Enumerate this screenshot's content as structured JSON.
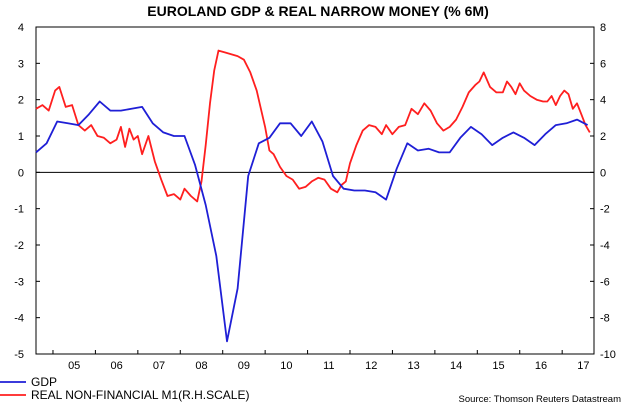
{
  "chart_data": {
    "type": "line",
    "title": "EUROLAND GDP & REAL NARROW MONEY (% 6M)",
    "source": "Source: Thomson Reuters Datastream",
    "colors": {
      "gdp": "#1f1fd6",
      "m1": "#ff1f1f",
      "axis": "#000000",
      "zero_line": "#000000"
    },
    "x_axis": {
      "labels": [
        "05",
        "06",
        "07",
        "08",
        "09",
        "10",
        "11",
        "12",
        "13",
        "14",
        "15",
        "16",
        "17"
      ],
      "range": [
        2004.6,
        2017.75
      ]
    },
    "y_left": {
      "label": "GDP",
      "range": [
        -5,
        4
      ],
      "ticks": [
        "4",
        "3",
        "2",
        "1",
        "0",
        "-1",
        "-2",
        "-3",
        "-4",
        "-5"
      ]
    },
    "y_right": {
      "label": "REAL NON-FINANCIAL M1 (R.H.SCALE)",
      "range": [
        -10,
        8
      ],
      "ticks": [
        "8",
        "6",
        "4",
        "2",
        "0",
        "-2",
        "-4",
        "-6",
        "-8",
        "-10"
      ]
    },
    "legend": [
      "GDP",
      "REAL NON-FINANCIAL M1(R.H.SCALE)"
    ],
    "series": [
      {
        "name": "GDP",
        "axis": "left",
        "points": [
          [
            2004.6,
            0.55
          ],
          [
            2004.85,
            0.8
          ],
          [
            2005.1,
            1.4
          ],
          [
            2005.35,
            1.35
          ],
          [
            2005.6,
            1.3
          ],
          [
            2005.85,
            1.6
          ],
          [
            2006.1,
            1.95
          ],
          [
            2006.35,
            1.7
          ],
          [
            2006.6,
            1.7
          ],
          [
            2006.85,
            1.75
          ],
          [
            2007.1,
            1.8
          ],
          [
            2007.35,
            1.35
          ],
          [
            2007.6,
            1.1
          ],
          [
            2007.85,
            1.0
          ],
          [
            2008.1,
            1.0
          ],
          [
            2008.35,
            0.2
          ],
          [
            2008.6,
            -0.9
          ],
          [
            2008.85,
            -2.3
          ],
          [
            2009.1,
            -4.65
          ],
          [
            2009.35,
            -3.2
          ],
          [
            2009.6,
            -0.1
          ],
          [
            2009.85,
            0.8
          ],
          [
            2010.1,
            0.95
          ],
          [
            2010.35,
            1.35
          ],
          [
            2010.6,
            1.35
          ],
          [
            2010.85,
            1.0
          ],
          [
            2011.1,
            1.4
          ],
          [
            2011.35,
            0.85
          ],
          [
            2011.6,
            -0.1
          ],
          [
            2011.85,
            -0.45
          ],
          [
            2012.1,
            -0.5
          ],
          [
            2012.35,
            -0.5
          ],
          [
            2012.6,
            -0.55
          ],
          [
            2012.85,
            -0.75
          ],
          [
            2013.1,
            0.1
          ],
          [
            2013.35,
            0.8
          ],
          [
            2013.6,
            0.6
          ],
          [
            2013.85,
            0.65
          ],
          [
            2014.1,
            0.55
          ],
          [
            2014.35,
            0.55
          ],
          [
            2014.6,
            0.95
          ],
          [
            2014.85,
            1.25
          ],
          [
            2015.1,
            1.05
          ],
          [
            2015.35,
            0.75
          ],
          [
            2015.6,
            0.95
          ],
          [
            2015.85,
            1.1
          ],
          [
            2016.1,
            0.95
          ],
          [
            2016.35,
            0.75
          ],
          [
            2016.6,
            1.05
          ],
          [
            2016.85,
            1.3
          ],
          [
            2017.1,
            1.35
          ],
          [
            2017.35,
            1.45
          ],
          [
            2017.6,
            1.3
          ]
        ]
      },
      {
        "name": "REAL NON-FINANCIAL M1",
        "axis": "right",
        "points": [
          [
            2004.6,
            3.5
          ],
          [
            2004.75,
            3.7
          ],
          [
            2004.9,
            3.4
          ],
          [
            2005.05,
            4.5
          ],
          [
            2005.15,
            4.7
          ],
          [
            2005.3,
            3.6
          ],
          [
            2005.45,
            3.7
          ],
          [
            2005.6,
            2.6
          ],
          [
            2005.75,
            2.3
          ],
          [
            2005.9,
            2.6
          ],
          [
            2006.05,
            2.0
          ],
          [
            2006.2,
            1.9
          ],
          [
            2006.35,
            1.6
          ],
          [
            2006.5,
            1.8
          ],
          [
            2006.6,
            2.5
          ],
          [
            2006.7,
            1.4
          ],
          [
            2006.8,
            2.4
          ],
          [
            2006.9,
            1.8
          ],
          [
            2007.0,
            2.0
          ],
          [
            2007.1,
            1.0
          ],
          [
            2007.25,
            2.0
          ],
          [
            2007.4,
            0.6
          ],
          [
            2007.55,
            -0.4
          ],
          [
            2007.7,
            -1.3
          ],
          [
            2007.85,
            -1.2
          ],
          [
            2008.0,
            -1.5
          ],
          [
            2008.1,
            -0.9
          ],
          [
            2008.25,
            -1.3
          ],
          [
            2008.4,
            -1.6
          ],
          [
            2008.5,
            -0.5
          ],
          [
            2008.6,
            1.5
          ],
          [
            2008.7,
            3.8
          ],
          [
            2008.8,
            5.6
          ],
          [
            2008.9,
            6.7
          ],
          [
            2009.05,
            6.6
          ],
          [
            2009.2,
            6.5
          ],
          [
            2009.35,
            6.4
          ],
          [
            2009.5,
            6.2
          ],
          [
            2009.65,
            5.5
          ],
          [
            2009.8,
            4.5
          ],
          [
            2009.9,
            3.5
          ],
          [
            2010.0,
            2.5
          ],
          [
            2010.1,
            1.2
          ],
          [
            2010.2,
            1.0
          ],
          [
            2010.35,
            0.3
          ],
          [
            2010.5,
            -0.2
          ],
          [
            2010.65,
            -0.4
          ],
          [
            2010.8,
            -0.9
          ],
          [
            2010.95,
            -0.8
          ],
          [
            2011.1,
            -0.5
          ],
          [
            2011.25,
            -0.3
          ],
          [
            2011.4,
            -0.4
          ],
          [
            2011.55,
            -0.9
          ],
          [
            2011.7,
            -1.1
          ],
          [
            2011.8,
            -0.7
          ],
          [
            2011.9,
            -0.5
          ],
          [
            2012.0,
            0.5
          ],
          [
            2012.15,
            1.5
          ],
          [
            2012.3,
            2.3
          ],
          [
            2012.45,
            2.6
          ],
          [
            2012.6,
            2.5
          ],
          [
            2012.75,
            2.1
          ],
          [
            2012.85,
            2.6
          ],
          [
            2013.0,
            2.1
          ],
          [
            2013.15,
            2.5
          ],
          [
            2013.3,
            2.6
          ],
          [
            2013.45,
            3.5
          ],
          [
            2013.6,
            3.2
          ],
          [
            2013.75,
            3.8
          ],
          [
            2013.9,
            3.4
          ],
          [
            2014.05,
            2.7
          ],
          [
            2014.2,
            2.3
          ],
          [
            2014.35,
            2.5
          ],
          [
            2014.5,
            2.9
          ],
          [
            2014.65,
            3.6
          ],
          [
            2014.8,
            4.4
          ],
          [
            2014.95,
            4.8
          ],
          [
            2015.05,
            5.0
          ],
          [
            2015.15,
            5.5
          ],
          [
            2015.3,
            4.7
          ],
          [
            2015.45,
            4.4
          ],
          [
            2015.6,
            4.4
          ],
          [
            2015.7,
            5.0
          ],
          [
            2015.8,
            4.7
          ],
          [
            2015.9,
            4.3
          ],
          [
            2016.0,
            4.9
          ],
          [
            2016.1,
            4.5
          ],
          [
            2016.25,
            4.2
          ],
          [
            2016.4,
            4.0
          ],
          [
            2016.55,
            3.9
          ],
          [
            2016.65,
            3.9
          ],
          [
            2016.75,
            4.2
          ],
          [
            2016.85,
            3.7
          ],
          [
            2016.95,
            4.2
          ],
          [
            2017.05,
            4.5
          ],
          [
            2017.15,
            4.3
          ],
          [
            2017.25,
            3.5
          ],
          [
            2017.35,
            3.8
          ],
          [
            2017.45,
            3.2
          ],
          [
            2017.55,
            2.6
          ],
          [
            2017.65,
            2.2
          ]
        ]
      }
    ]
  }
}
